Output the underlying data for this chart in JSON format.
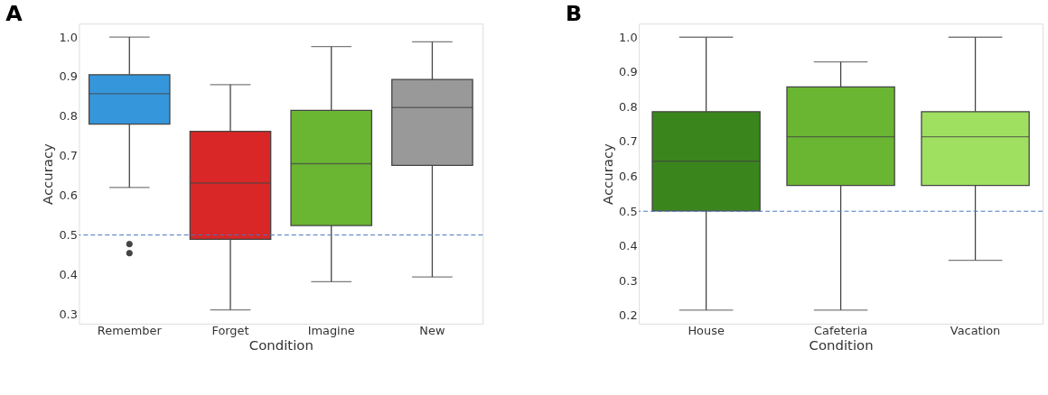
{
  "chart_data": [
    {
      "type": "box",
      "title": "A",
      "xlabel": "Condition",
      "ylabel": "Accuracy",
      "categories": [
        "Remember",
        "Forget",
        "Imagine",
        "New"
      ],
      "colors": [
        "#3596db",
        "#d92626",
        "#6ab632",
        "#999999"
      ],
      "boxes": [
        {
          "low": 0.62,
          "q1": 0.78,
          "median": 0.857,
          "q3": 0.905,
          "high": 1.0,
          "outliers": [
            0.477,
            0.454
          ]
        },
        {
          "low": 0.311,
          "q1": 0.489,
          "median": 0.631,
          "q3": 0.762,
          "high": 0.88
        },
        {
          "low": 0.382,
          "q1": 0.524,
          "median": 0.68,
          "q3": 0.815,
          "high": 0.976
        },
        {
          "low": 0.394,
          "q1": 0.676,
          "median": 0.822,
          "q3": 0.893,
          "high": 0.988
        }
      ],
      "ylim": [
        0.276,
        1.034
      ],
      "yticks": [
        0.3,
        0.4,
        0.5,
        0.6,
        0.7,
        0.8,
        0.9,
        {
          "value": 1.0,
          "label": "1.0"
        }
      ],
      "ref_lines": [
        {
          "axis": "y",
          "value": 0.5,
          "color": "#4a78c2",
          "line_style": "dashed"
        }
      ],
      "grid": false
    },
    {
      "type": "box",
      "title": "B",
      "xlabel": "Condition",
      "ylabel": "Accuracy",
      "categories": [
        "House",
        "Cafeteria",
        "Vacation"
      ],
      "colors": [
        "#3a861c",
        "#6ab632",
        "#a0e060"
      ],
      "boxes": [
        {
          "low": 0.216,
          "q1": 0.501,
          "median": 0.644,
          "q3": 0.786,
          "high": 1.0
        },
        {
          "low": 0.216,
          "q1": 0.574,
          "median": 0.714,
          "q3": 0.857,
          "high": 0.929
        },
        {
          "low": 0.359,
          "q1": 0.574,
          "median": 0.714,
          "q3": 0.786,
          "high": 1.0
        }
      ],
      "ylim": [
        0.177,
        1.039
      ],
      "yticks": [
        0.2,
        0.3,
        0.4,
        0.5,
        0.6,
        0.7,
        0.8,
        0.9,
        {
          "value": 1.0,
          "label": "1.0"
        }
      ],
      "ref_lines": [
        {
          "axis": "y",
          "value": 0.5,
          "color": "#4a78c2",
          "line_style": "dashed"
        }
      ],
      "grid": false
    }
  ]
}
